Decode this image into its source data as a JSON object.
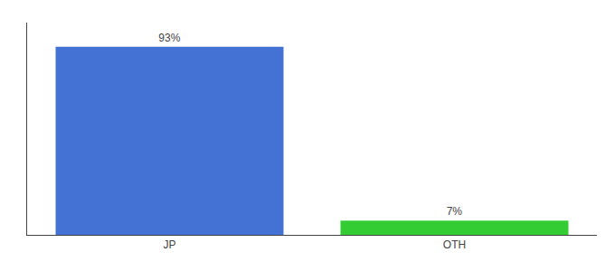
{
  "chart_data": {
    "type": "bar",
    "categories": [
      "JP",
      "OTH"
    ],
    "values": [
      93,
      7
    ],
    "value_labels": [
      "93%",
      "7%"
    ],
    "colors": [
      "#4472d4",
      "#33cc33"
    ],
    "ylim": [
      0,
      105
    ],
    "data_labels": true,
    "tick_labels": "x",
    "grid": false
  }
}
